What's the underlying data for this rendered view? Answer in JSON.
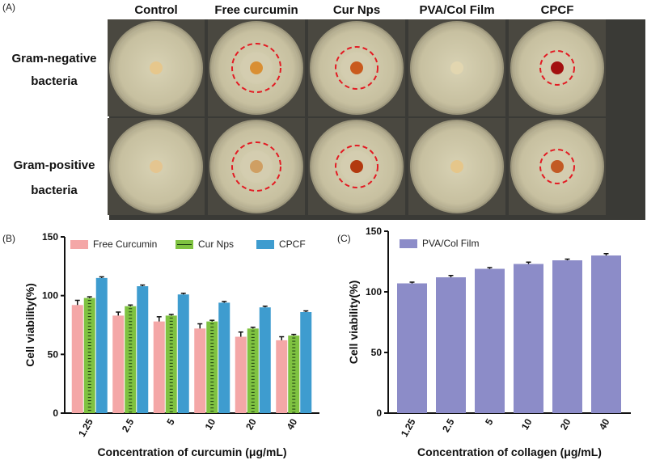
{
  "panel_a": {
    "label": "(A)",
    "columns": [
      "Control",
      "Free curcumin",
      "Cur Nps",
      "PVA/Col Film",
      "CPCF"
    ],
    "rows": [
      {
        "line1": "Gram-negative",
        "line2": "bacteria"
      },
      {
        "line1": "Gram-positive",
        "line2": "bacteria"
      }
    ],
    "dish_color": "#c9c3a6",
    "plates": [
      [
        {
          "disc": "#e6c78c",
          "zone": false
        },
        {
          "disc": "#d98f34",
          "zone": true
        },
        {
          "disc": "#c95a1e",
          "zone": true
        },
        {
          "disc": "#e2d6b0",
          "zone": false
        },
        {
          "disc": "#a3100f",
          "zone": true
        }
      ],
      [
        {
          "disc": "#e4c590",
          "zone": false
        },
        {
          "disc": "#cf9f63",
          "zone": true
        },
        {
          "disc": "#b2390f",
          "zone": true
        },
        {
          "disc": "#e5c68a",
          "zone": false
        },
        {
          "disc": "#c25a24",
          "zone": true
        }
      ]
    ]
  },
  "chart_data": [
    {
      "panel": "(B)",
      "type": "bar",
      "title": "",
      "xlabel": "Concentration of curcumin (μg/mL)",
      "ylabel": "Cell viability(%)",
      "ylim": [
        0,
        150
      ],
      "yticks": [
        0,
        50,
        100,
        150
      ],
      "categories": [
        "1.25",
        "2.5",
        "5",
        "10",
        "20",
        "40"
      ],
      "series": [
        {
          "name": "Free Curcumin",
          "color": "#f4a7a7",
          "values": [
            92,
            83,
            78,
            72,
            65,
            62
          ],
          "errors": [
            4,
            3,
            4,
            4,
            4,
            3
          ]
        },
        {
          "name": "Cur Nps",
          "color": "#7fc241",
          "values": [
            98,
            91,
            83,
            78,
            72,
            66
          ],
          "errors": [
            1,
            1,
            1,
            1,
            1,
            1
          ]
        },
        {
          "name": "CPCF",
          "color": "#3e9ccf",
          "values": [
            115,
            108,
            101,
            94,
            90,
            86
          ],
          "errors": [
            1,
            1,
            1,
            1,
            1,
            1
          ]
        }
      ]
    },
    {
      "panel": "(C)",
      "type": "bar",
      "title": "",
      "xlabel": "Concentration of collagen (μg/mL)",
      "ylabel": "Cell viability(%)",
      "ylim": [
        0,
        150
      ],
      "yticks": [
        0,
        50,
        100,
        150
      ],
      "categories": [
        "1.25",
        "2.5",
        "5",
        "10",
        "20",
        "40"
      ],
      "series": [
        {
          "name": "PVA/Col Film",
          "color": "#8c8cc8",
          "values": [
            107,
            112,
            119,
            123,
            126,
            130
          ],
          "errors": [
            1,
            1.5,
            1,
            1.5,
            1,
            1.5
          ]
        }
      ]
    }
  ]
}
